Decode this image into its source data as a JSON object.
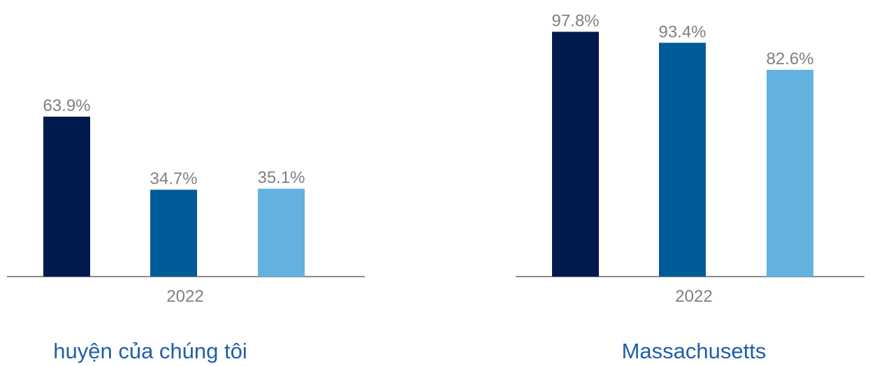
{
  "chart_data": [
    {
      "type": "bar",
      "caption": "huyện của chúng tôi",
      "categories": [
        "2022"
      ],
      "series": [
        {
          "values": [
            63.9
          ],
          "color": "#001a4d",
          "label": "63.9%"
        },
        {
          "values": [
            34.7
          ],
          "color": "#005b99",
          "label": "34.7%"
        },
        {
          "values": [
            35.1
          ],
          "color": "#63b1df",
          "label": "35.1%"
        }
      ],
      "ylim": [
        0,
        100
      ],
      "grid": false
    },
    {
      "type": "bar",
      "caption": "Massachusetts",
      "categories": [
        "2022"
      ],
      "series": [
        {
          "values": [
            97.8
          ],
          "color": "#001a4d",
          "label": "97.8%"
        },
        {
          "values": [
            93.4
          ],
          "color": "#005b99",
          "label": "93.4%"
        },
        {
          "values": [
            82.6
          ],
          "color": "#63b1df",
          "label": "82.6%"
        }
      ],
      "ylim": [
        0,
        100
      ],
      "grid": false
    }
  ]
}
